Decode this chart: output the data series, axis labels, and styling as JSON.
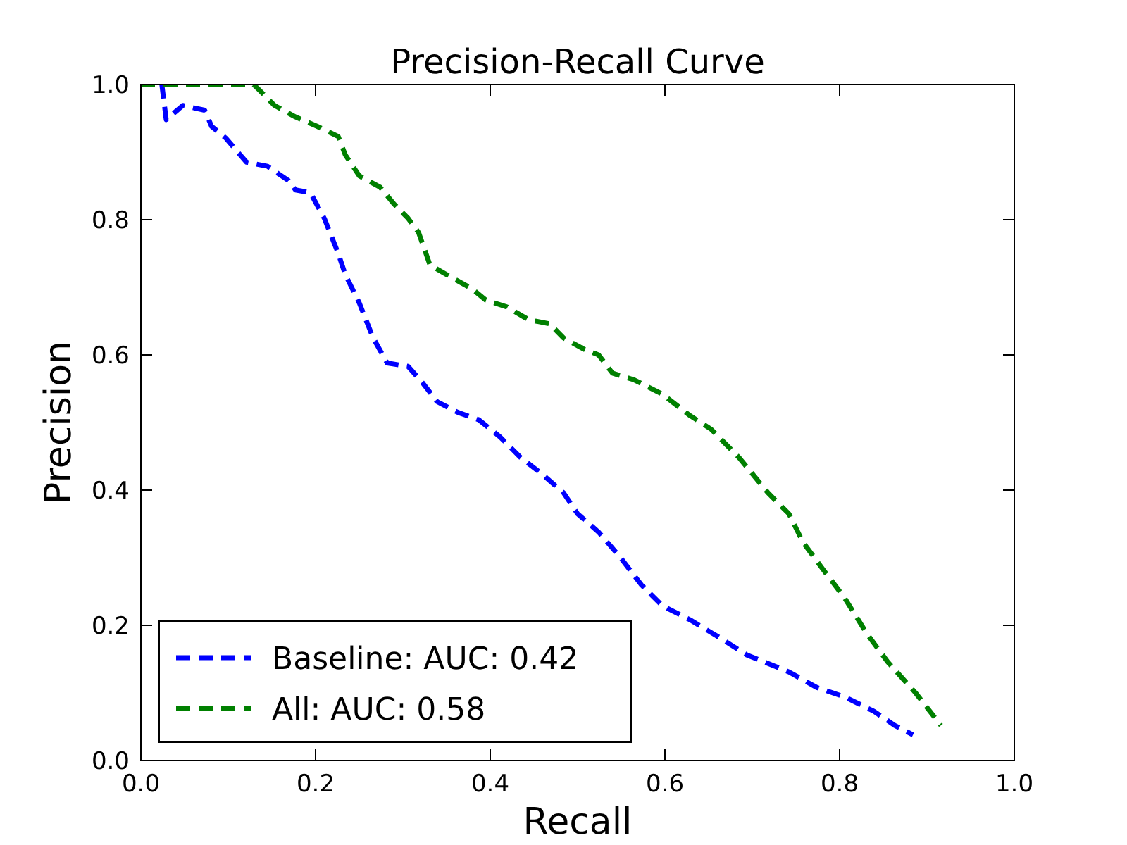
{
  "chart_data": {
    "type": "line",
    "title": "Precision-Recall Curve",
    "xlabel": "Recall",
    "ylabel": "Precision",
    "xlim": [
      0,
      1
    ],
    "ylim": [
      0,
      1
    ],
    "xticks": [
      {
        "value": 0,
        "label": "0.0"
      },
      0.2,
      0.4,
      0.6,
      0.8,
      {
        "value": 1,
        "label": "1.0"
      }
    ],
    "yticks": [
      {
        "value": 0,
        "label": "0.0"
      },
      0.2,
      0.4,
      0.6,
      0.8,
      {
        "value": 1,
        "label": "1.0"
      }
    ],
    "grid": false,
    "legend": "bottom left",
    "line_style": "dashed",
    "marker": "none",
    "series": [
      {
        "name": "Baseline: AUC: 0.42",
        "color": "#0000ff",
        "x": [
          0.024,
          0.029,
          0.048,
          0.073,
          0.081,
          0.097,
          0.121,
          0.145,
          0.169,
          0.177,
          0.194,
          0.21,
          0.226,
          0.234,
          0.25,
          0.266,
          0.282,
          0.306,
          0.323,
          0.339,
          0.363,
          0.387,
          0.411,
          0.435,
          0.46,
          0.484,
          0.5,
          0.524,
          0.548,
          0.573,
          0.597,
          0.629,
          0.661,
          0.694,
          0.742,
          0.774,
          0.806,
          0.839,
          0.863,
          0.884
        ],
        "values": [
          1.0,
          0.948,
          0.969,
          0.962,
          0.938,
          0.921,
          0.885,
          0.879,
          0.858,
          0.844,
          0.84,
          0.802,
          0.75,
          0.719,
          0.677,
          0.625,
          0.588,
          0.583,
          0.558,
          0.531,
          0.515,
          0.504,
          0.479,
          0.448,
          0.423,
          0.396,
          0.365,
          0.338,
          0.302,
          0.26,
          0.229,
          0.208,
          0.183,
          0.156,
          0.131,
          0.108,
          0.094,
          0.073,
          0.052,
          0.038
        ]
      },
      {
        "name": "All: AUC: 0.58",
        "color": "#008000",
        "x": [
          0,
          0.129,
          0.137,
          0.153,
          0.177,
          0.202,
          0.226,
          0.234,
          0.25,
          0.274,
          0.29,
          0.306,
          0.318,
          0.331,
          0.355,
          0.379,
          0.395,
          0.419,
          0.444,
          0.468,
          0.484,
          0.508,
          0.524,
          0.54,
          0.565,
          0.597,
          0.629,
          0.653,
          0.685,
          0.718,
          0.742,
          0.758,
          0.782,
          0.806,
          0.831,
          0.855,
          0.887,
          0.916
        ],
        "values": [
          1,
          1,
          0.99,
          0.969,
          0.952,
          0.938,
          0.923,
          0.896,
          0.865,
          0.848,
          0.823,
          0.802,
          0.781,
          0.733,
          0.715,
          0.698,
          0.681,
          0.671,
          0.652,
          0.646,
          0.625,
          0.608,
          0.6,
          0.573,
          0.563,
          0.542,
          0.51,
          0.49,
          0.448,
          0.396,
          0.365,
          0.323,
          0.281,
          0.24,
          0.188,
          0.146,
          0.1,
          0.052
        ]
      }
    ]
  }
}
